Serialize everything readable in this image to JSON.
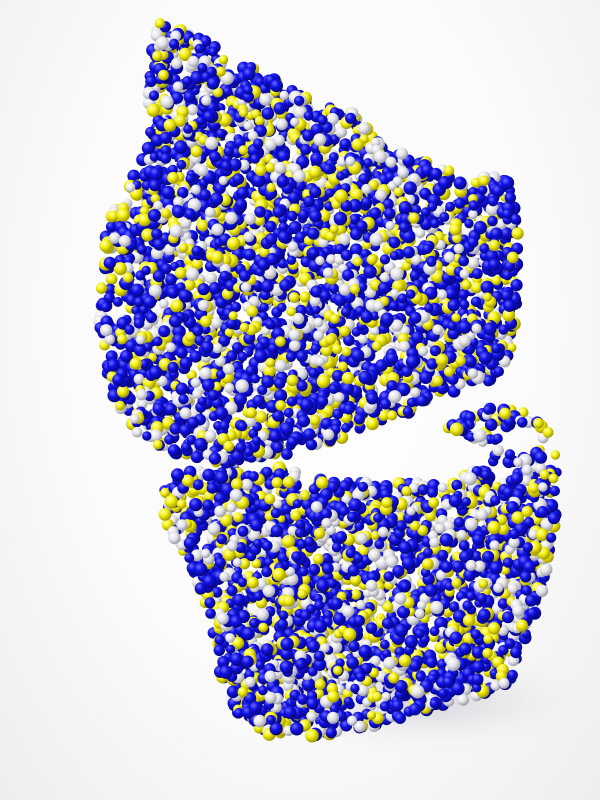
{
  "scene": {
    "subject": "particle-sculpture",
    "background_color": "#ffffff",
    "shadow_color": "#c8c8d0",
    "particle_colors": {
      "primary": "#1010e6",
      "secondary": "#f4ef0e",
      "tertiary": "#e3e3e8"
    },
    "particle_color_mix": {
      "primary": 0.56,
      "secondary": 0.23,
      "tertiary": 0.21
    }
  }
}
